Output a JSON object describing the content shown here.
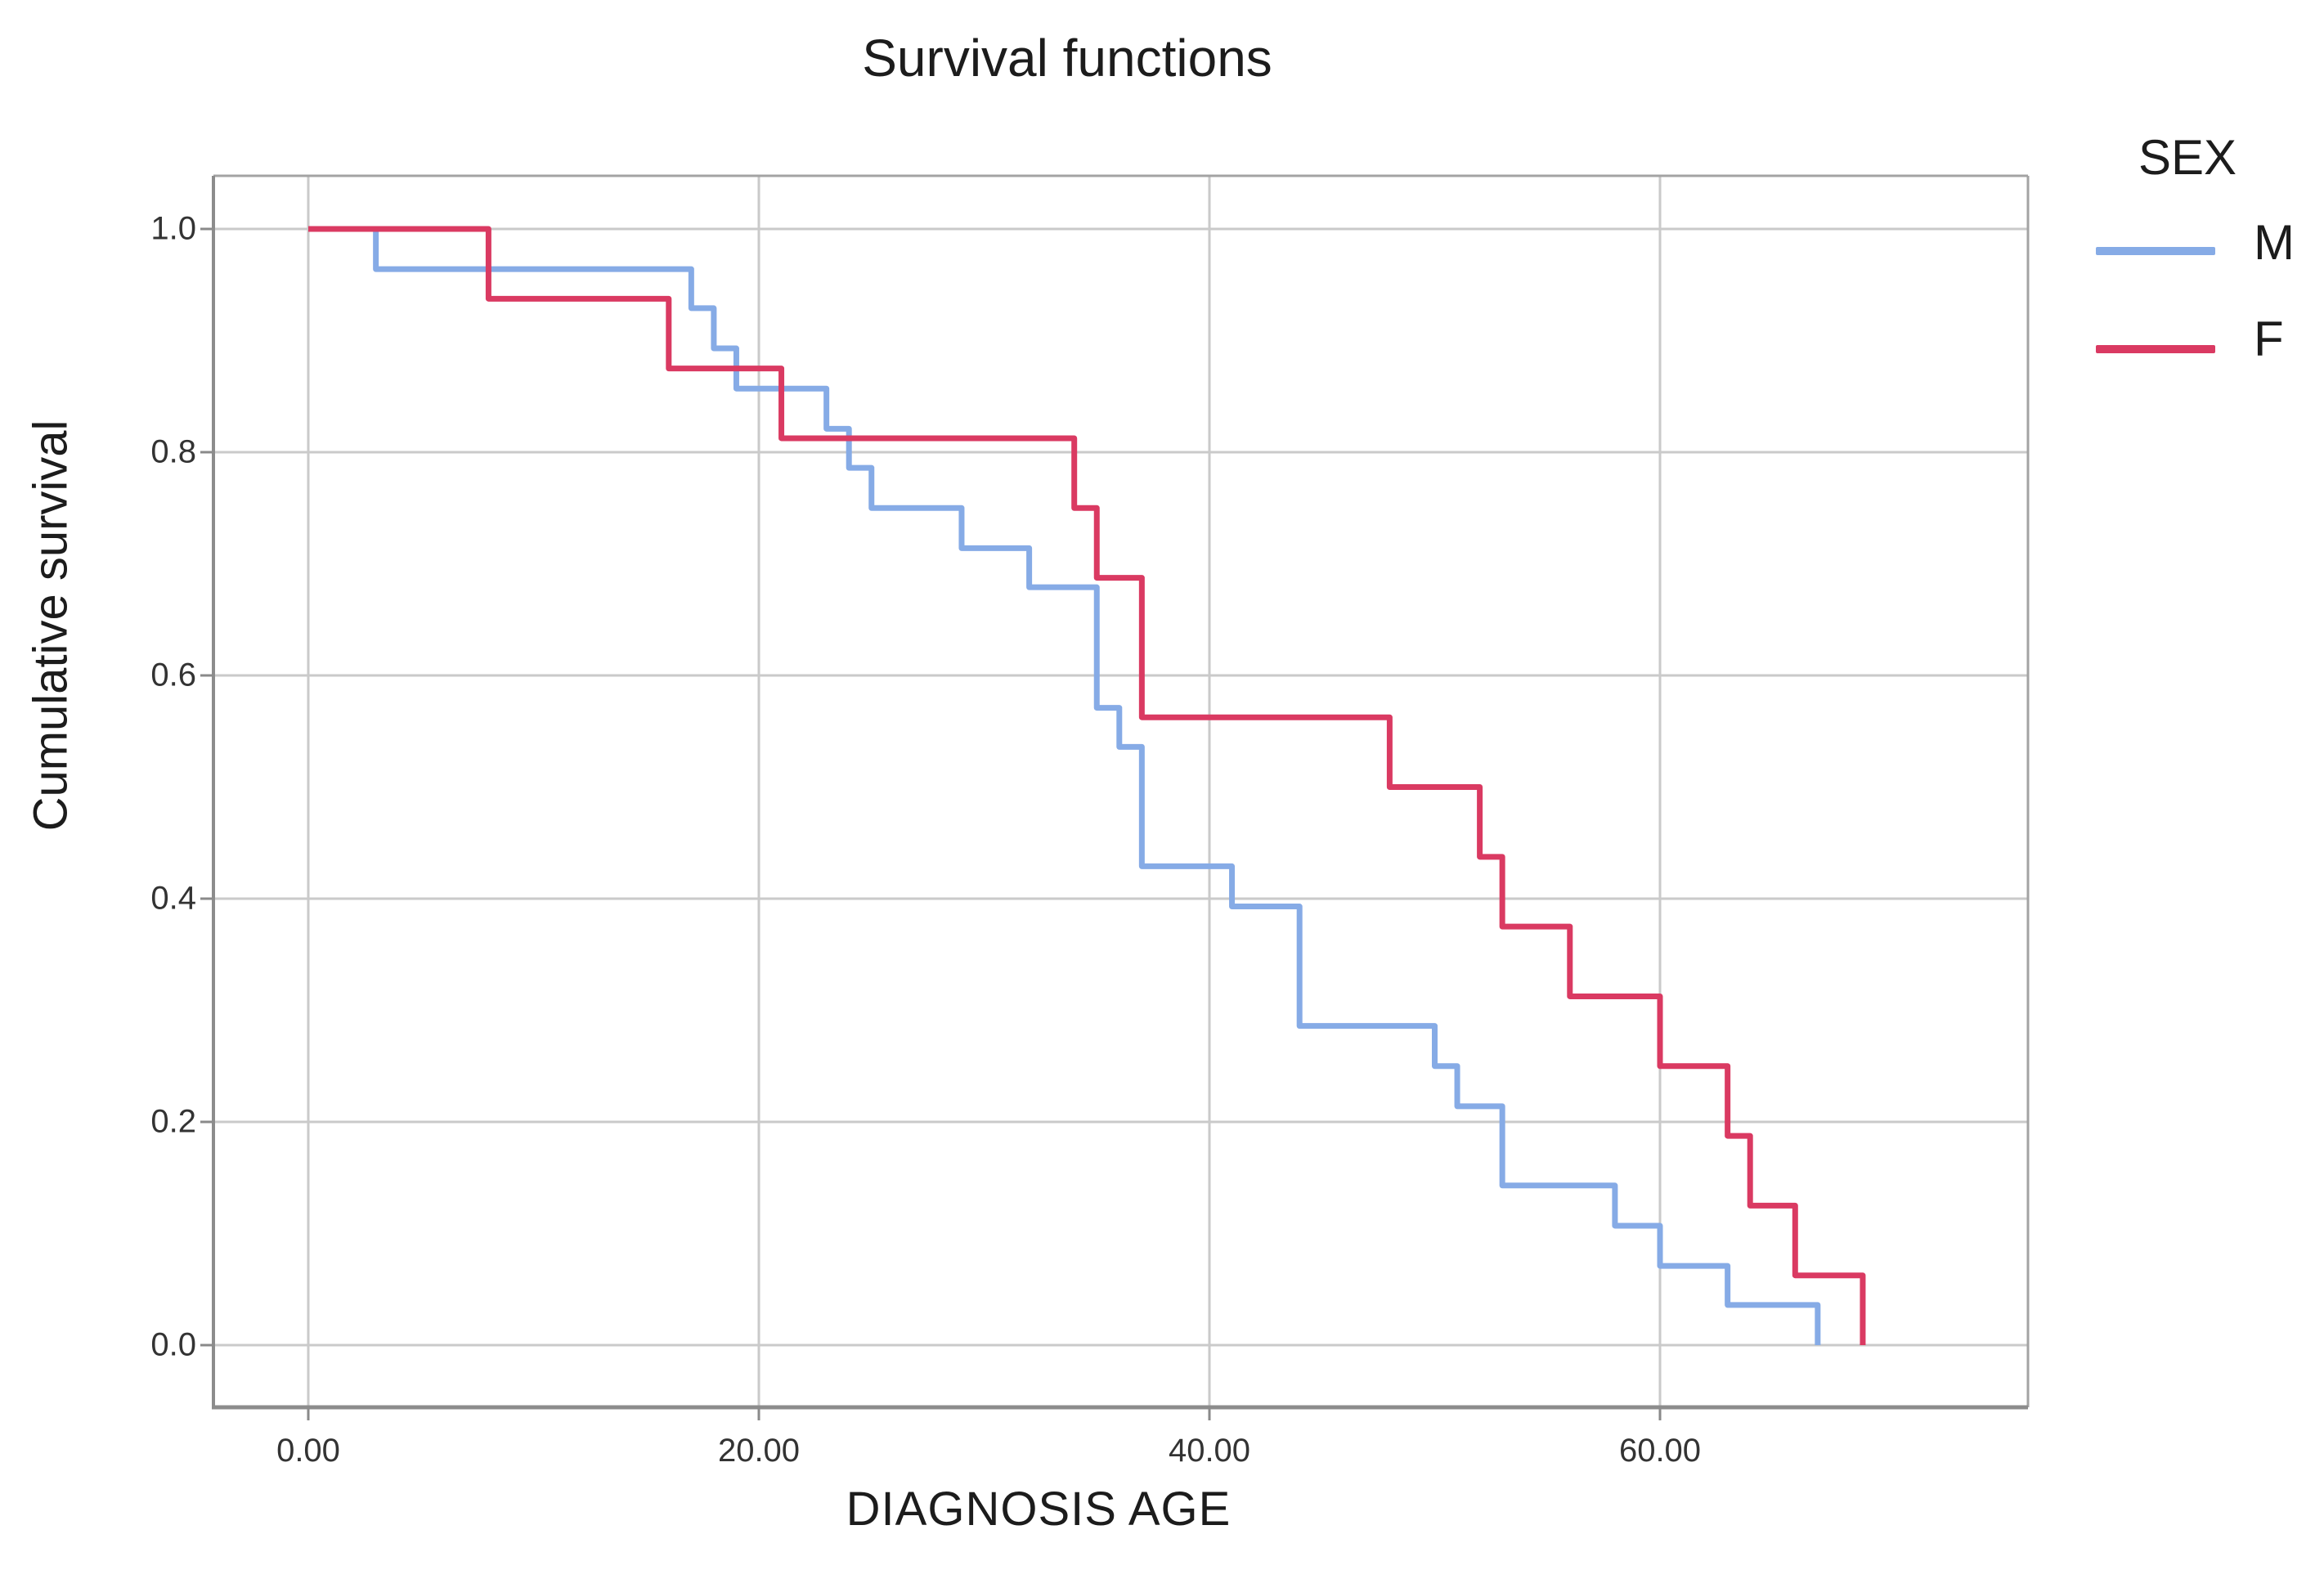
{
  "chart_data": {
    "type": "step",
    "title": "Survival functions",
    "xlabel": "DIAGNOSIS AGE",
    "ylabel": "Cumulative survival",
    "grid": true,
    "legend_position": "right-top",
    "xlim": [
      0,
      70
    ],
    "ylim": [
      0.0,
      1.0
    ],
    "x_ticks": [
      {
        "value": 0,
        "label": "0.00"
      },
      {
        "value": 20,
        "label": "20.00"
      },
      {
        "value": 40,
        "label": "40.00"
      },
      {
        "value": 60,
        "label": "60.00"
      }
    ],
    "y_ticks": [
      {
        "value": 1.0,
        "label": "1.0"
      },
      {
        "value": 0.8,
        "label": "0.8"
      },
      {
        "value": 0.6,
        "label": "0.6"
      },
      {
        "value": 0.4,
        "label": "0.4"
      },
      {
        "value": 0.2,
        "label": "0.2"
      },
      {
        "value": 0.0,
        "label": "0.0"
      }
    ],
    "legend": {
      "title": "SEX",
      "entries": [
        {
          "label": "M",
          "color": "#86abe6"
        },
        {
          "label": "F",
          "color": "#da3a62"
        }
      ]
    },
    "series": [
      {
        "name": "M",
        "color": "#86abe6",
        "start": [
          0,
          1.0
        ],
        "steps": [
          [
            3,
            0.964
          ],
          [
            17,
            0.929
          ],
          [
            18,
            0.893
          ],
          [
            19,
            0.857
          ],
          [
            23,
            0.821
          ],
          [
            24,
            0.786
          ],
          [
            25,
            0.75
          ],
          [
            29,
            0.714
          ],
          [
            32,
            0.679
          ],
          [
            35,
            0.571
          ],
          [
            36,
            0.536
          ],
          [
            37,
            0.429
          ],
          [
            41,
            0.393
          ],
          [
            44,
            0.286
          ],
          [
            50,
            0.25
          ],
          [
            51,
            0.214
          ],
          [
            53,
            0.143
          ],
          [
            58,
            0.107
          ],
          [
            60,
            0.071
          ],
          [
            63,
            0.036
          ],
          [
            67,
            0.0
          ]
        ]
      },
      {
        "name": "F",
        "color": "#da3a62",
        "start": [
          0,
          1.0
        ],
        "steps": [
          [
            8,
            0.9375
          ],
          [
            16,
            0.875
          ],
          [
            21,
            0.8125
          ],
          [
            34,
            0.75
          ],
          [
            35,
            0.6875
          ],
          [
            37,
            0.5625
          ],
          [
            48,
            0.5
          ],
          [
            52,
            0.4375
          ],
          [
            53,
            0.375
          ],
          [
            56,
            0.3125
          ],
          [
            60,
            0.25
          ],
          [
            63,
            0.1875
          ],
          [
            64,
            0.125
          ],
          [
            66,
            0.0625
          ],
          [
            69,
            0.0
          ]
        ]
      }
    ],
    "style": {
      "grid_color": "#cacaca",
      "frame_color": "#a3a3a3",
      "axis_color": "#8a8a8a",
      "text_color": "#1c1c1c",
      "tick_text_color": "#333333",
      "background": "#ffffff"
    }
  }
}
